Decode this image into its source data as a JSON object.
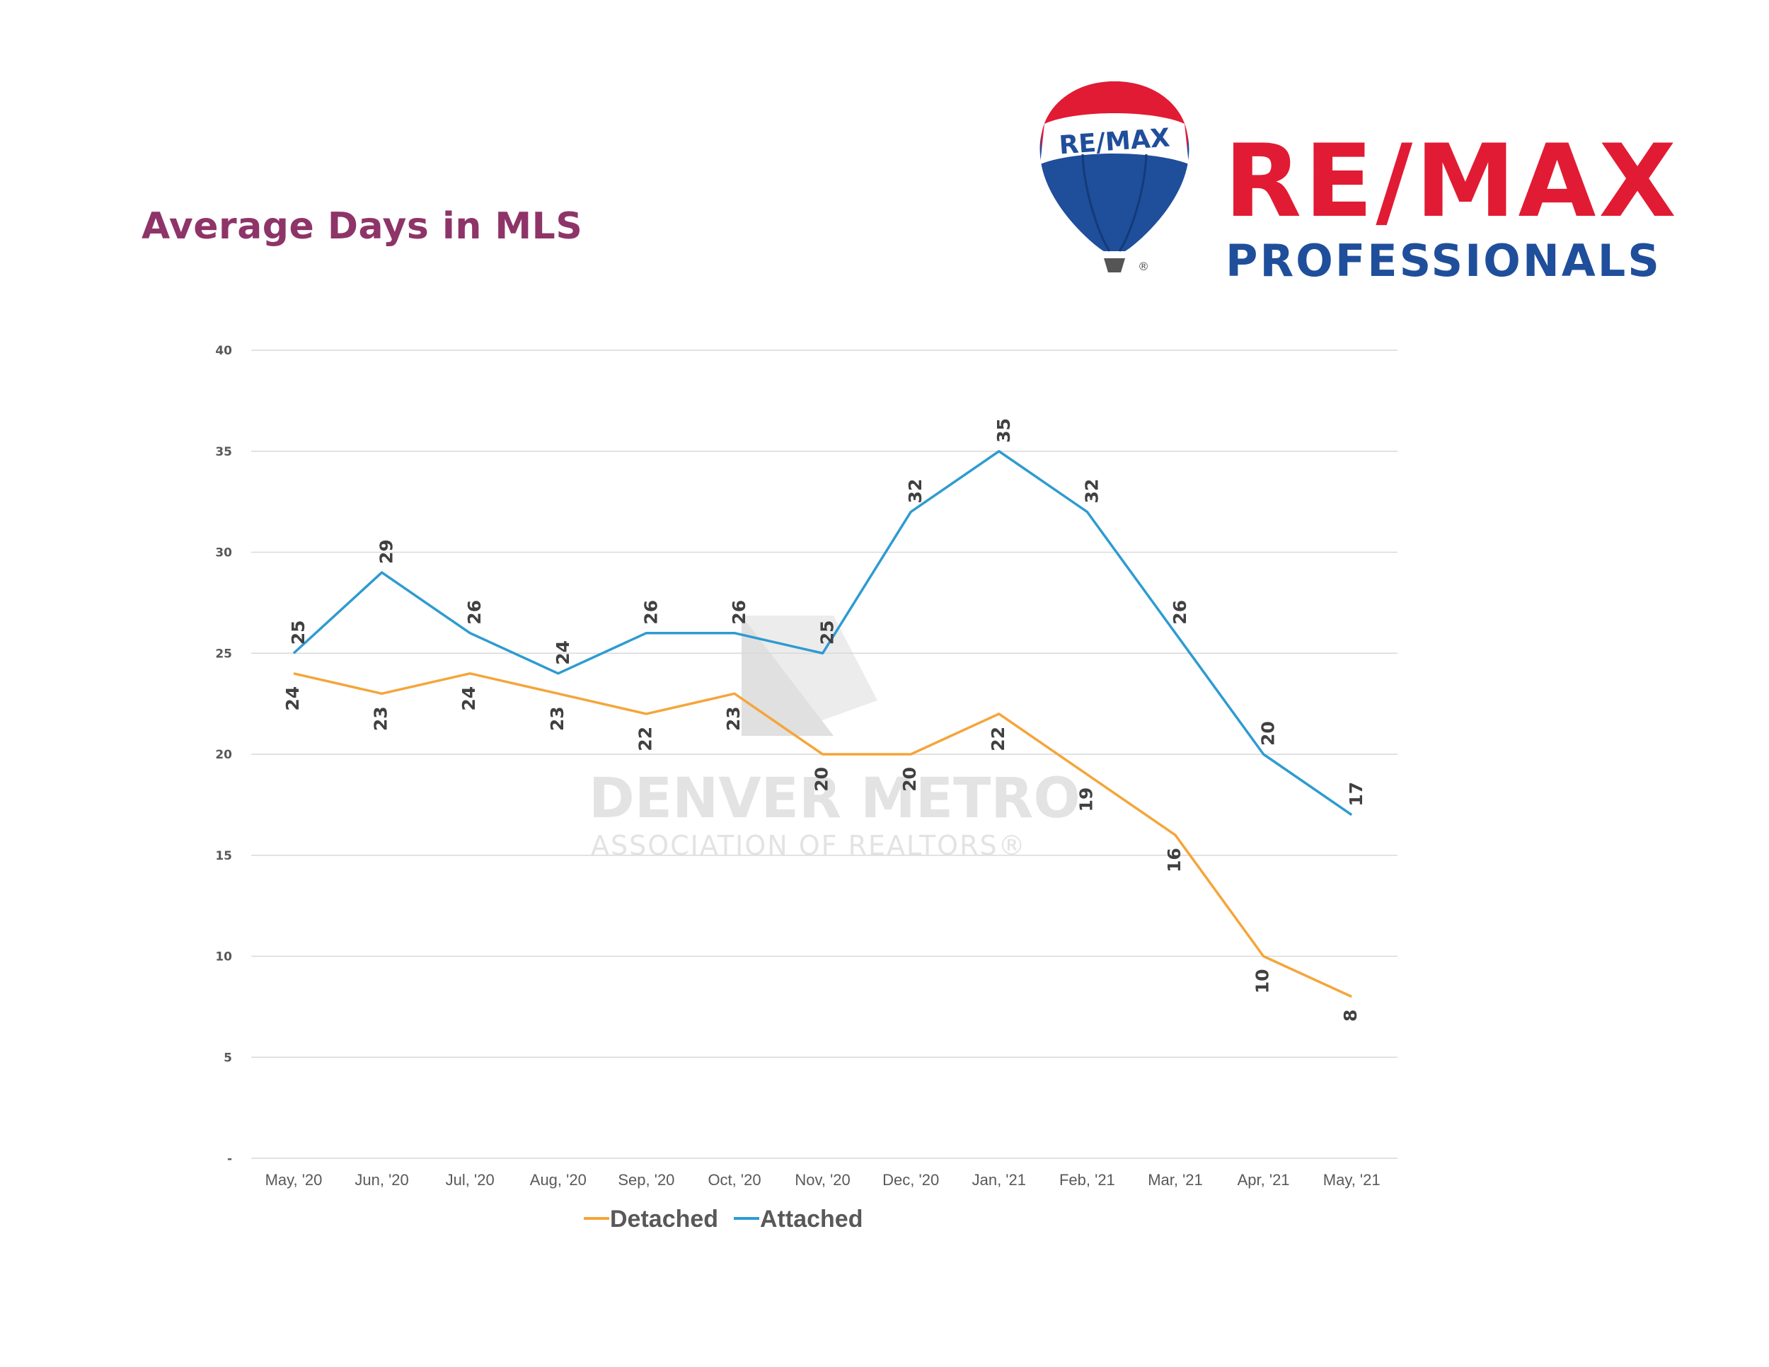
{
  "page": {
    "title": "Average Days in MLS"
  },
  "logo": {
    "balloon_text": "RE/MAX",
    "brand_text": "RE/MAX",
    "brand_subtext": "PROFESSIONALS",
    "registered_mark": "®",
    "colors": {
      "red": "#e11b33",
      "blue": "#1f4e9b"
    }
  },
  "watermark": {
    "line1": "DENVER METRO",
    "line2": "ASSOCIATION OF REALTORS®"
  },
  "chart_data": {
    "type": "line",
    "title": "",
    "xlabel": "",
    "ylabel": "",
    "ylim": [
      0,
      40
    ],
    "yticks": [
      0,
      5,
      10,
      15,
      20,
      25,
      30,
      35,
      40
    ],
    "ytick_labels": [
      "-",
      "5",
      "10",
      "15",
      "20",
      "25",
      "30",
      "35",
      "40"
    ],
    "grid": true,
    "legend_position": "bottom",
    "categories": [
      "May, '20",
      "Jun, '20",
      "Jul, '20",
      "Aug, '20",
      "Sep, '20",
      "Oct, '20",
      "Nov, '20",
      "Dec, '20",
      "Jan, '21",
      "Feb, '21",
      "Mar, '21",
      "Apr, '21",
      "May, '21"
    ],
    "series": [
      {
        "name": "Detached",
        "color": "#f5a53a",
        "values": [
          24,
          23,
          24,
          23,
          22,
          23,
          20,
          20,
          22,
          19,
          16,
          10,
          8
        ]
      },
      {
        "name": "Attached",
        "color": "#2e9bd1",
        "values": [
          25,
          29,
          26,
          24,
          26,
          26,
          25,
          32,
          35,
          32,
          26,
          20,
          17
        ]
      }
    ]
  }
}
